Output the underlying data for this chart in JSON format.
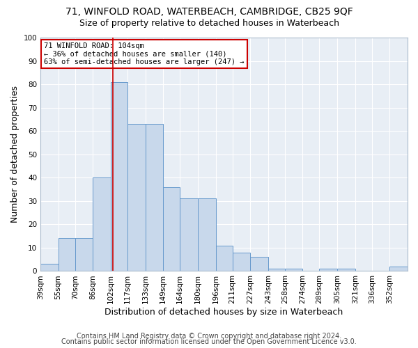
{
  "title1": "71, WINFOLD ROAD, WATERBEACH, CAMBRIDGE, CB25 9QF",
  "title2": "Size of property relative to detached houses in Waterbeach",
  "xlabel": "Distribution of detached houses by size in Waterbeach",
  "ylabel": "Number of detached properties",
  "footer1": "Contains HM Land Registry data © Crown copyright and database right 2024.",
  "footer2": "Contains public sector information licensed under the Open Government Licence v3.0.",
  "bin_labels": [
    "39sqm",
    "55sqm",
    "70sqm",
    "86sqm",
    "102sqm",
    "117sqm",
    "133sqm",
    "149sqm",
    "164sqm",
    "180sqm",
    "196sqm",
    "211sqm",
    "227sqm",
    "243sqm",
    "258sqm",
    "274sqm",
    "289sqm",
    "305sqm",
    "321sqm",
    "336sqm",
    "352sqm"
  ],
  "bin_edges": [
    39,
    55,
    70,
    86,
    102,
    117,
    133,
    149,
    164,
    180,
    196,
    211,
    227,
    243,
    258,
    274,
    289,
    305,
    321,
    336,
    352,
    368
  ],
  "values": [
    3,
    14,
    14,
    40,
    81,
    63,
    63,
    36,
    31,
    31,
    11,
    8,
    6,
    1,
    1,
    0,
    1,
    1,
    0,
    0,
    2
  ],
  "bar_color": "#c8d8eb",
  "bar_edge_color": "#6699cc",
  "red_line_x": 104,
  "ylim": [
    0,
    100
  ],
  "yticks": [
    0,
    10,
    20,
    30,
    40,
    50,
    60,
    70,
    80,
    90,
    100
  ],
  "annotation_line1": "71 WINFOLD ROAD: 104sqm",
  "annotation_line2": "← 36% of detached houses are smaller (140)",
  "annotation_line3": "63% of semi-detached houses are larger (247) →",
  "annotation_box_color": "#ffffff",
  "annotation_border_color": "#cc0000",
  "background_color": "#ffffff",
  "plot_bg_color": "#e8eef5",
  "grid_color": "#ffffff",
  "title_fontsize": 10,
  "subtitle_fontsize": 9,
  "axis_label_fontsize": 9,
  "tick_fontsize": 7.5,
  "footer_fontsize": 7
}
